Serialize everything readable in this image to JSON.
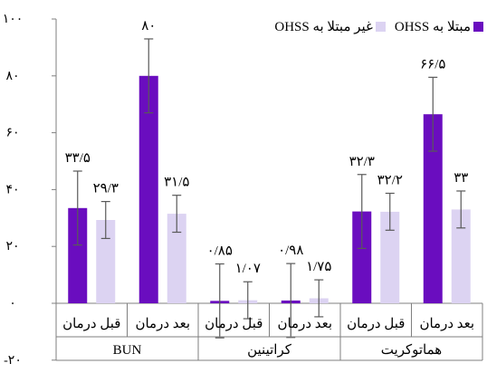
{
  "chart_data": {
    "type": "bar",
    "title": "",
    "ylim": [
      -20,
      100
    ],
    "y_ticks": [
      {
        "value": 100,
        "label": "۱۰۰"
      },
      {
        "value": 80,
        "label": "۸۰"
      },
      {
        "value": 60,
        "label": "۶۰"
      },
      {
        "value": 40,
        "label": "۴۰"
      },
      {
        "value": 20,
        "label": "۲۰"
      },
      {
        "value": 0,
        "label": "۰"
      },
      {
        "value": -20,
        "label": "-۲۰"
      }
    ],
    "groups": [
      {
        "name": "BUN",
        "categories": [
          "قبل درمان",
          "بعد درمان"
        ]
      },
      {
        "name": "کراتینین",
        "categories": [
          "قبل درمان",
          "بعد درمان"
        ]
      },
      {
        "name": "هماتوکریت",
        "categories": [
          "قبل درمان",
          "بعد درمان"
        ]
      }
    ],
    "series": [
      {
        "name": "مبتلا به OHSS",
        "color": "#6a0dbf",
        "values": [
          33.5,
          80,
          0.85,
          0.98,
          32.3,
          66.5
        ],
        "labels": [
          "۳۳/۵",
          "۸۰",
          "۰/۸۵",
          "۰/۹۸",
          "۳۲/۳",
          "۶۶/۵"
        ],
        "err": [
          13,
          13,
          13,
          13,
          13,
          13
        ]
      },
      {
        "name": "غیر مبتلا به OHSS",
        "color": "#dcd3f2",
        "values": [
          29.3,
          31.5,
          1.07,
          1.75,
          32.2,
          33
        ],
        "labels": [
          "۲۹/۳",
          "۳۱/۵",
          "۱/۰۷",
          "۱/۷۵",
          "۳۲/۲",
          "۳۳"
        ],
        "err": [
          6.5,
          6.5,
          6.5,
          6.5,
          6.5,
          6.5
        ]
      }
    ],
    "legend": {
      "position": "top-right"
    }
  }
}
